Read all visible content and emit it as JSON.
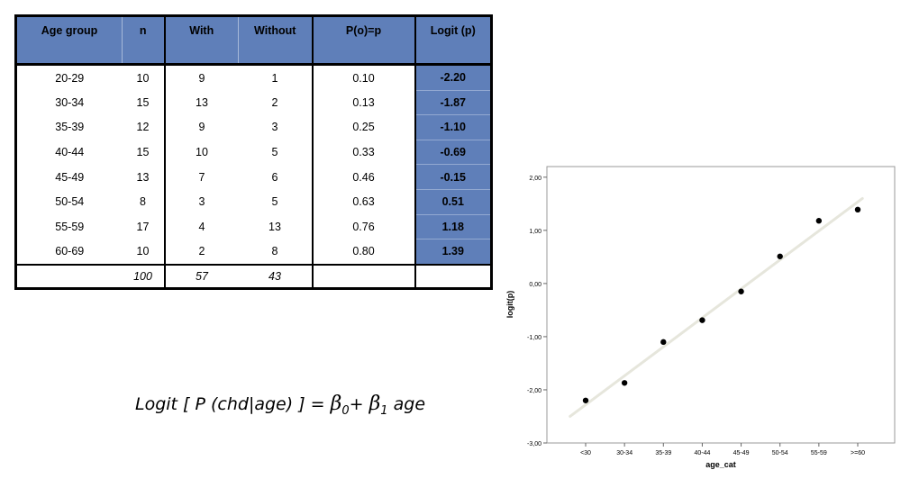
{
  "table": {
    "headers": [
      "Age group",
      "n",
      "With",
      "Without",
      "P(o)=p",
      "Logit (p)"
    ],
    "rows": [
      {
        "age": "20-29",
        "n": "10",
        "with": "9",
        "without": "1",
        "p": "0.10",
        "logit": "-2.20"
      },
      {
        "age": "30-34",
        "n": "15",
        "with": "13",
        "without": "2",
        "p": "0.13",
        "logit": "-1.87"
      },
      {
        "age": "35-39",
        "n": "12",
        "with": "9",
        "without": "3",
        "p": "0.25",
        "logit": "-1.10"
      },
      {
        "age": "40-44",
        "n": "15",
        "with": "10",
        "without": "5",
        "p": "0.33",
        "logit": "-0.69"
      },
      {
        "age": "45-49",
        "n": "13",
        "with": "7",
        "without": "6",
        "p": "0.46",
        "logit": "-0.15"
      },
      {
        "age": "50-54",
        "n": "8",
        "with": "3",
        "without": "5",
        "p": "0.63",
        "logit": "0.51"
      },
      {
        "age": "55-59",
        "n": "17",
        "with": "4",
        "without": "13",
        "p": "0.76",
        "logit": "1.18"
      },
      {
        "age": "60-69",
        "n": "10",
        "with": "2",
        "without": "8",
        "p": "0.80",
        "logit": "1.39"
      }
    ],
    "totals": {
      "age": "",
      "n": "100",
      "with": "57",
      "without": "43",
      "p": "",
      "logit": ""
    }
  },
  "formula": {
    "lhs": "Logit [ P (chd|age) ] = ",
    "beta": "β",
    "sub0": "0",
    "plus": "+ ",
    "sub1": "1",
    "rhs": " age"
  },
  "colors": {
    "header_fill": "#5f7fb9",
    "fit_line": "#e6e6dc",
    "points": "#000000"
  },
  "chart_data": {
    "type": "scatter",
    "title": "",
    "xlabel": "age_cat",
    "ylabel": "logit(p)",
    "categories": [
      "<30",
      "30-34",
      "35-39",
      "40-44",
      "45-49",
      "50-54",
      "55-59",
      ">=60"
    ],
    "series": [
      {
        "values": [
          -2.2,
          -1.87,
          -1.1,
          -0.69,
          -0.15,
          0.51,
          1.18,
          1.39
        ]
      }
    ],
    "fit_line": {
      "start": -2.5,
      "end": 1.6
    },
    "ylim": [
      -3.0,
      2.2
    ],
    "yticks": [
      -3.0,
      -2.0,
      -1.0,
      0.0,
      1.0,
      2.0
    ],
    "ytick_labels": [
      "-3,00",
      "-2,00",
      "-1,00",
      "0,00",
      "1,00",
      "2,00"
    ],
    "grid": false,
    "legend": "none"
  }
}
